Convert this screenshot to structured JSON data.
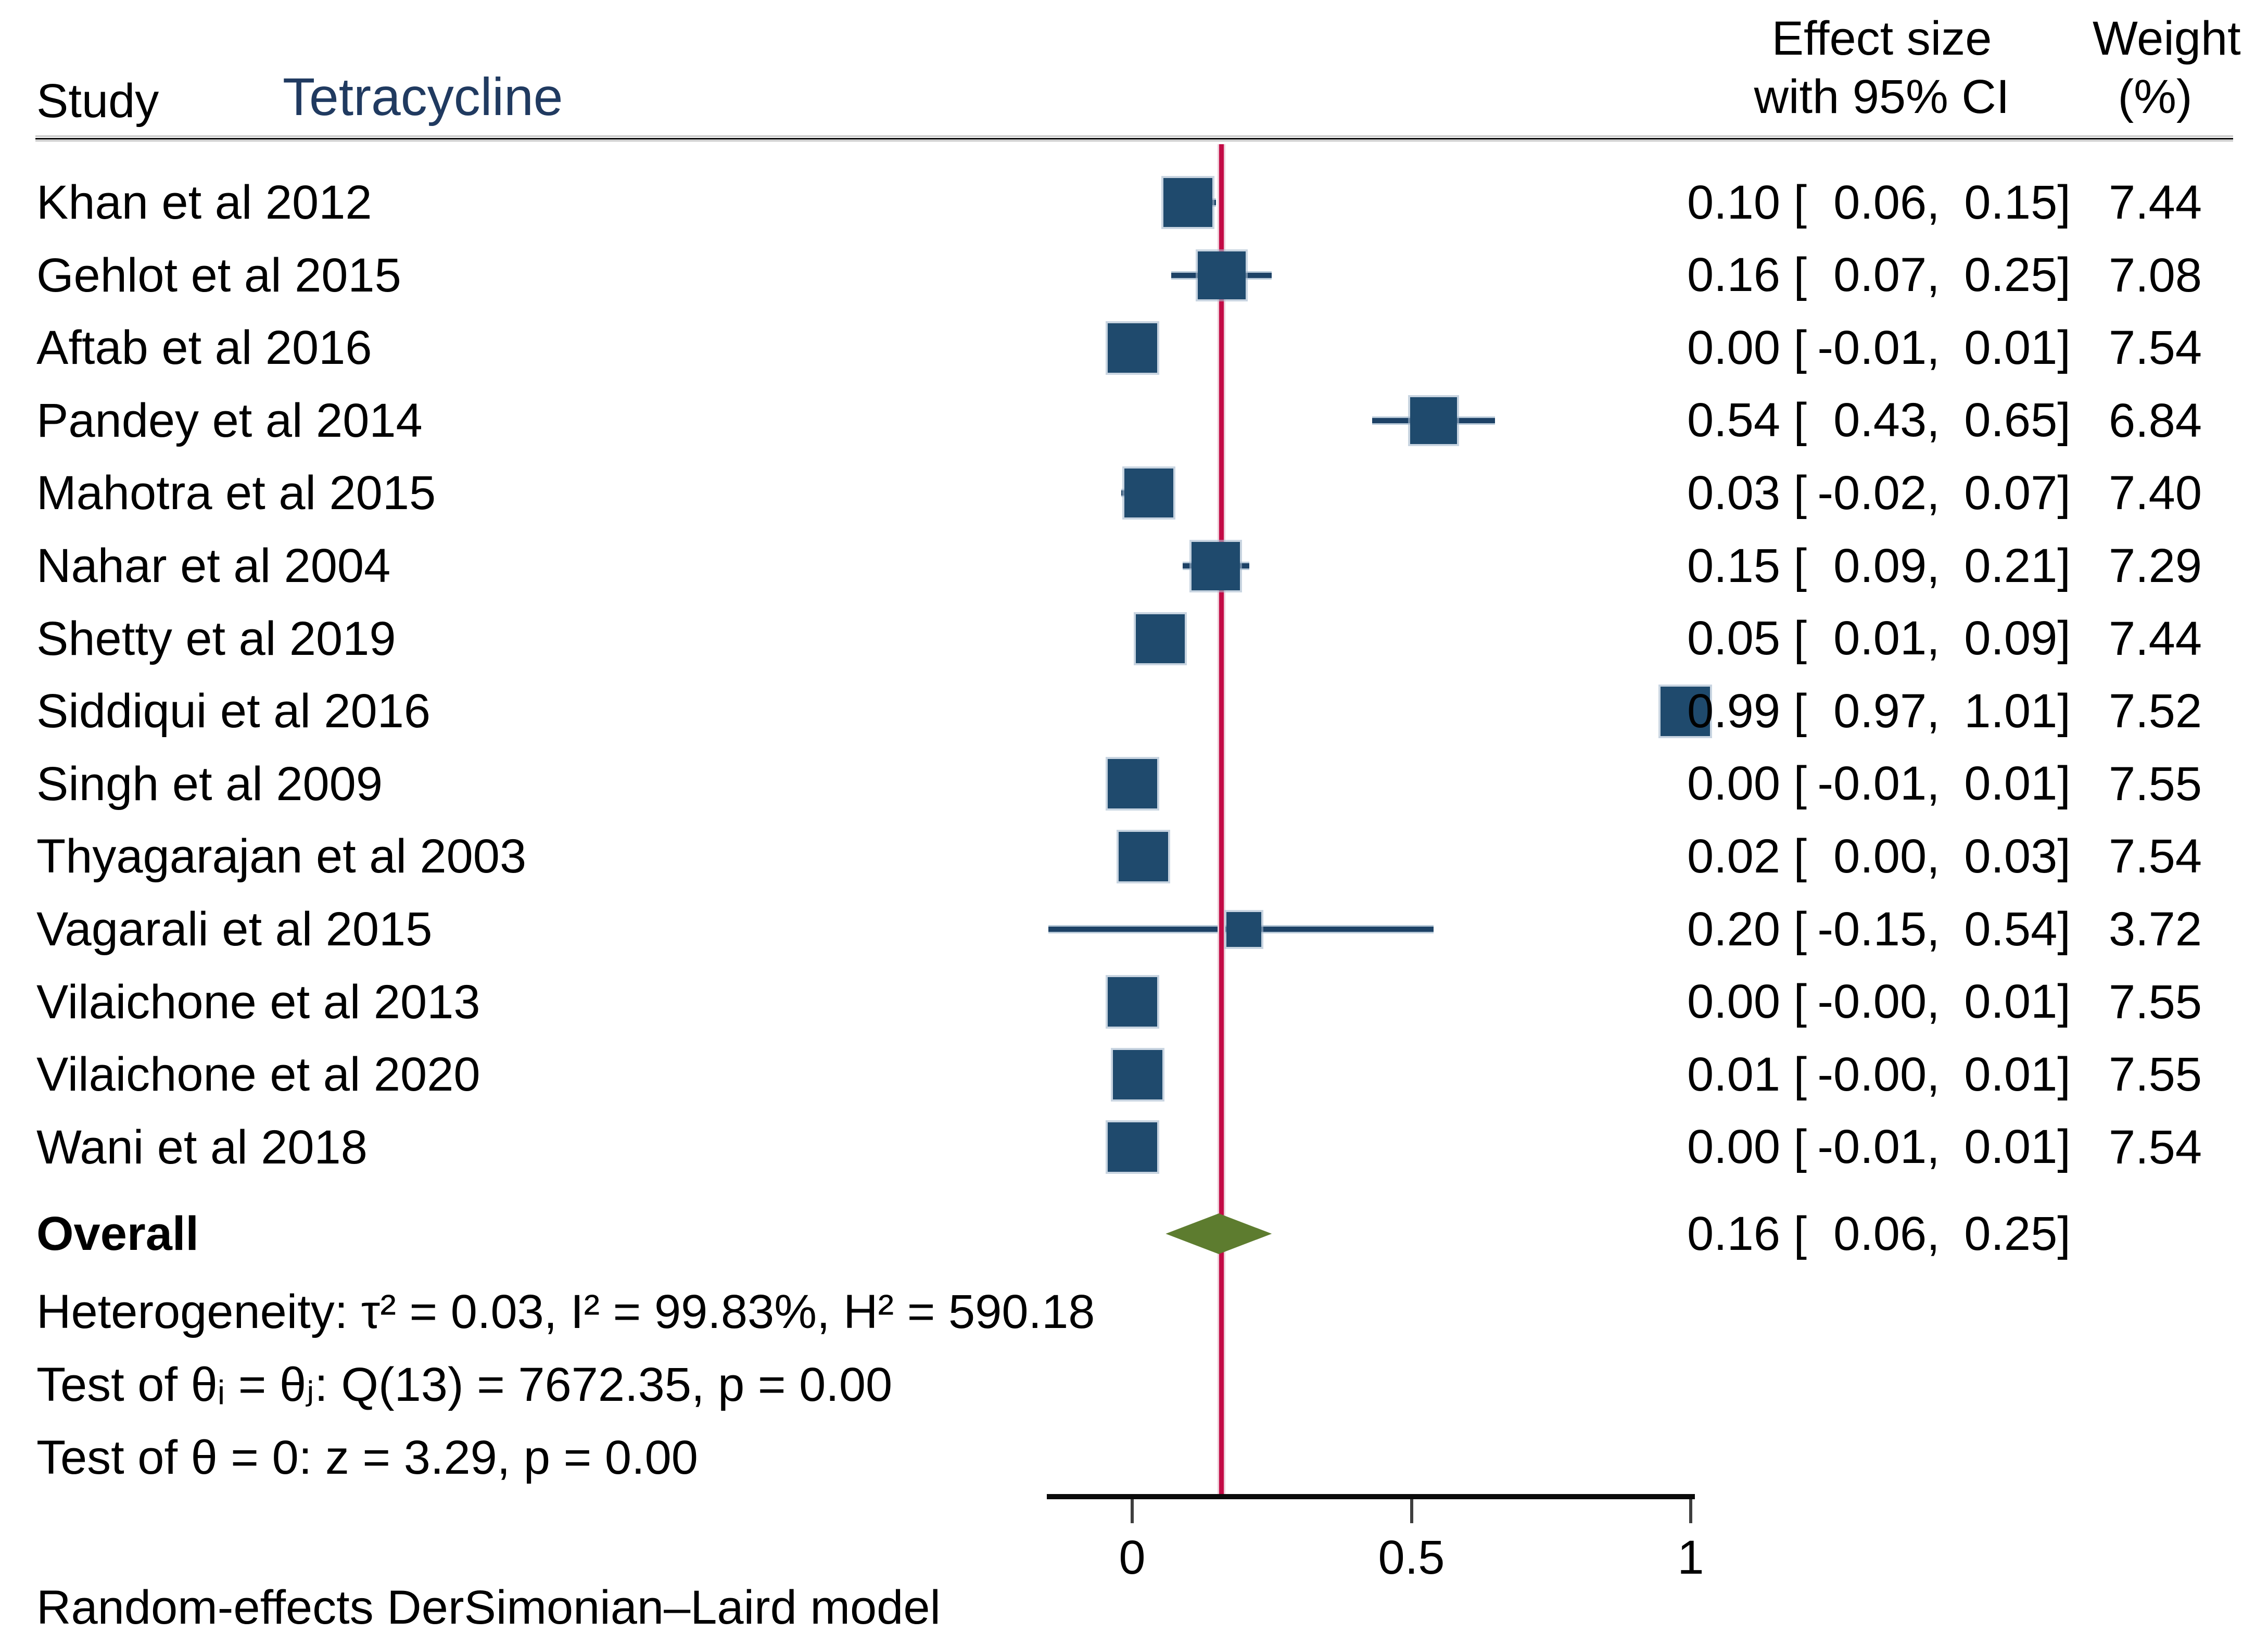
{
  "title": "Tetracycline",
  "header": {
    "study_col": "Study",
    "effect_col_line1": "Effect size",
    "effect_col_line2": "with 95% CI",
    "weight_col_line1": "Weight",
    "weight_col_line2": "(%)"
  },
  "footer": "Random-effects DerSimonian–Laird model",
  "chart_data": {
    "type": "forest",
    "title": "Tetracycline",
    "x_axis": {
      "ticks": [
        0,
        0.5,
        1
      ],
      "tick_labels": [
        "0",
        "0.5",
        "1"
      ],
      "range": [
        -0.153,
        1.007
      ],
      "ref_line_value": 0.16
    },
    "studies": [
      {
        "label": "Khan et al 2012",
        "est": 0.1,
        "lo": 0.06,
        "hi": 0.15,
        "est_text": "0.10",
        "lo_text": "0.06",
        "hi_text": "0.15",
        "weight": 7.44,
        "weight_text": "7.44"
      },
      {
        "label": "Gehlot et al 2015",
        "est": 0.16,
        "lo": 0.07,
        "hi": 0.25,
        "est_text": "0.16",
        "lo_text": "0.07",
        "hi_text": "0.25",
        "weight": 7.08,
        "weight_text": "7.08"
      },
      {
        "label": "Aftab et al 2016",
        "est": 0.0,
        "lo": -0.01,
        "hi": 0.01,
        "est_text": "0.00",
        "lo_text": "-0.01",
        "hi_text": "0.01",
        "weight": 7.54,
        "weight_text": "7.54"
      },
      {
        "label": "Pandey et al 2014",
        "est": 0.54,
        "lo": 0.43,
        "hi": 0.65,
        "est_text": "0.54",
        "lo_text": "0.43",
        "hi_text": "0.65",
        "weight": 6.84,
        "weight_text": "6.84"
      },
      {
        "label": "Mahotra et al 2015",
        "est": 0.03,
        "lo": -0.02,
        "hi": 0.07,
        "est_text": "0.03",
        "lo_text": "-0.02",
        "hi_text": "0.07",
        "weight": 7.4,
        "weight_text": "7.40"
      },
      {
        "label": "Nahar et al 2004",
        "est": 0.15,
        "lo": 0.09,
        "hi": 0.21,
        "est_text": "0.15",
        "lo_text": "0.09",
        "hi_text": "0.21",
        "weight": 7.29,
        "weight_text": "7.29"
      },
      {
        "label": "Shetty et al 2019",
        "est": 0.05,
        "lo": 0.01,
        "hi": 0.09,
        "est_text": "0.05",
        "lo_text": "0.01",
        "hi_text": "0.09",
        "weight": 7.44,
        "weight_text": "7.44"
      },
      {
        "label": "Siddiqui et al 2016",
        "est": 0.99,
        "lo": 0.97,
        "hi": 1.01,
        "est_text": "0.99",
        "lo_text": "0.97",
        "hi_text": "1.01",
        "weight": 7.52,
        "weight_text": "7.52"
      },
      {
        "label": "Singh et al 2009",
        "est": 0.0,
        "lo": -0.01,
        "hi": 0.01,
        "est_text": "0.00",
        "lo_text": "-0.01",
        "hi_text": "0.01",
        "weight": 7.55,
        "weight_text": "7.55"
      },
      {
        "label": "Thyagarajan et al 2003",
        "est": 0.02,
        "lo": 0.0,
        "hi": 0.03,
        "est_text": "0.02",
        "lo_text": "0.00",
        "hi_text": "0.03",
        "weight": 7.54,
        "weight_text": "7.54"
      },
      {
        "label": "Vagarali et al 2015",
        "est": 0.2,
        "lo": -0.15,
        "hi": 0.54,
        "est_text": "0.20",
        "lo_text": "-0.15",
        "hi_text": "0.54",
        "weight": 3.72,
        "weight_text": "3.72"
      },
      {
        "label": "Vilaichone et al 2013",
        "est": 0.0,
        "lo": -0.004,
        "hi": 0.01,
        "est_text": "0.00",
        "lo_text": "-0.00",
        "hi_text": "0.01",
        "weight": 7.55,
        "weight_text": "7.55"
      },
      {
        "label": "Vilaichone et al 2020",
        "est": 0.01,
        "lo": -0.004,
        "hi": 0.01,
        "est_text": "0.01",
        "lo_text": "-0.00",
        "hi_text": "0.01",
        "weight": 7.55,
        "weight_text": "7.55"
      },
      {
        "label": "Wani et al 2018",
        "est": 0.0,
        "lo": -0.01,
        "hi": 0.01,
        "est_text": "0.00",
        "lo_text": "-0.01",
        "hi_text": "0.01",
        "weight": 7.54,
        "weight_text": "7.54"
      }
    ],
    "overall": {
      "label": "Overall",
      "est": 0.16,
      "lo": 0.06,
      "hi": 0.25,
      "est_text": "0.16",
      "lo_text": "0.06",
      "hi_text": "0.25"
    },
    "stats": {
      "heterogeneity": "Heterogeneity: τ² = 0.03, I² = 99.83%, H² = 590.18",
      "test_theta_ij": "Test of θᵢ = θⱼ: Q(13) = 7672.35, p = 0.00",
      "test_theta_zero": "Test of θ = 0: z = 3.29, p = 0.00"
    },
    "legend_position": "none",
    "grid": false,
    "colors": {
      "square": "#1f4a6d",
      "ci_line": "#1d4266",
      "diamond": "#5d7c2f",
      "ref_line": "#c30b45",
      "title": "#203a60",
      "axis": "#0a0a0a"
    }
  }
}
